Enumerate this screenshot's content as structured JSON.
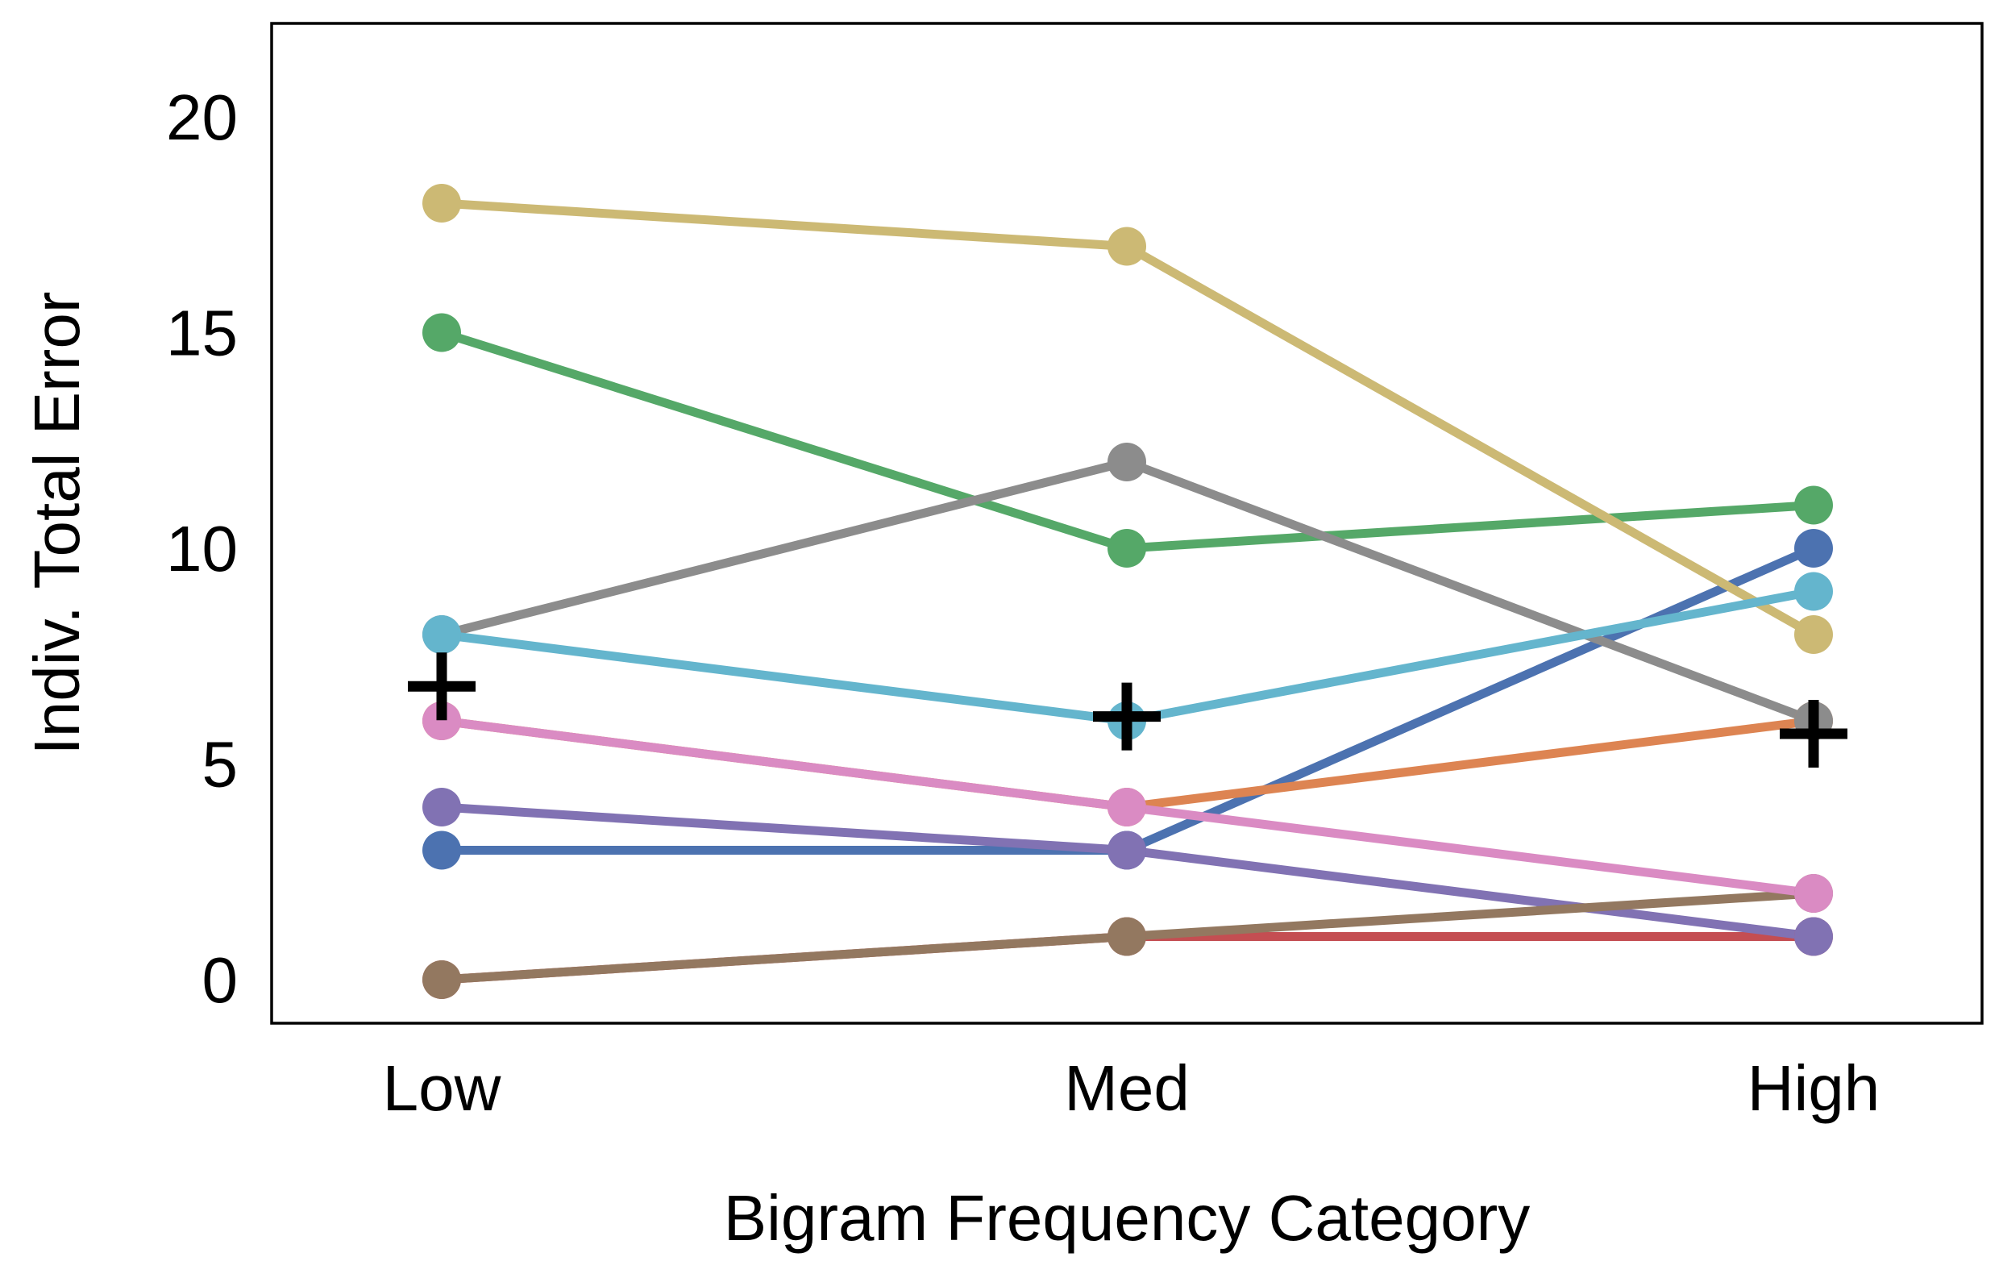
{
  "chart_data": {
    "type": "line",
    "xlabel": "Bigram Frequency Category",
    "ylabel": "Indiv. Total Error",
    "categories": [
      "Low",
      "Med",
      "High"
    ],
    "ylim": [
      -1,
      22
    ],
    "yticks": [
      0,
      5,
      10,
      15,
      20
    ],
    "grid": false,
    "legend": "none",
    "series": [
      {
        "color": "#4C72B0",
        "values": [
          3,
          3,
          10
        ]
      },
      {
        "color": "#DD8452",
        "values": [
          6,
          4,
          6
        ]
      },
      {
        "color": "#55A868",
        "values": [
          15,
          10,
          11
        ]
      },
      {
        "color": "#C44E52",
        "values": [
          0,
          1,
          1
        ]
      },
      {
        "color": "#8172B3",
        "values": [
          4,
          3,
          1
        ]
      },
      {
        "color": "#937860",
        "values": [
          0,
          1,
          2
        ]
      },
      {
        "color": "#DA8BC3",
        "values": [
          6,
          4,
          2
        ]
      },
      {
        "color": "#8C8C8C",
        "values": [
          8,
          12,
          6
        ]
      },
      {
        "color": "#CCB974",
        "values": [
          18,
          17,
          8
        ]
      },
      {
        "color": "#64B5CD",
        "values": [
          8,
          6,
          9
        ]
      }
    ],
    "mean_markers": {
      "color": "#000000",
      "marker": "plus",
      "values": [
        6.8,
        6.1,
        5.7
      ]
    }
  }
}
